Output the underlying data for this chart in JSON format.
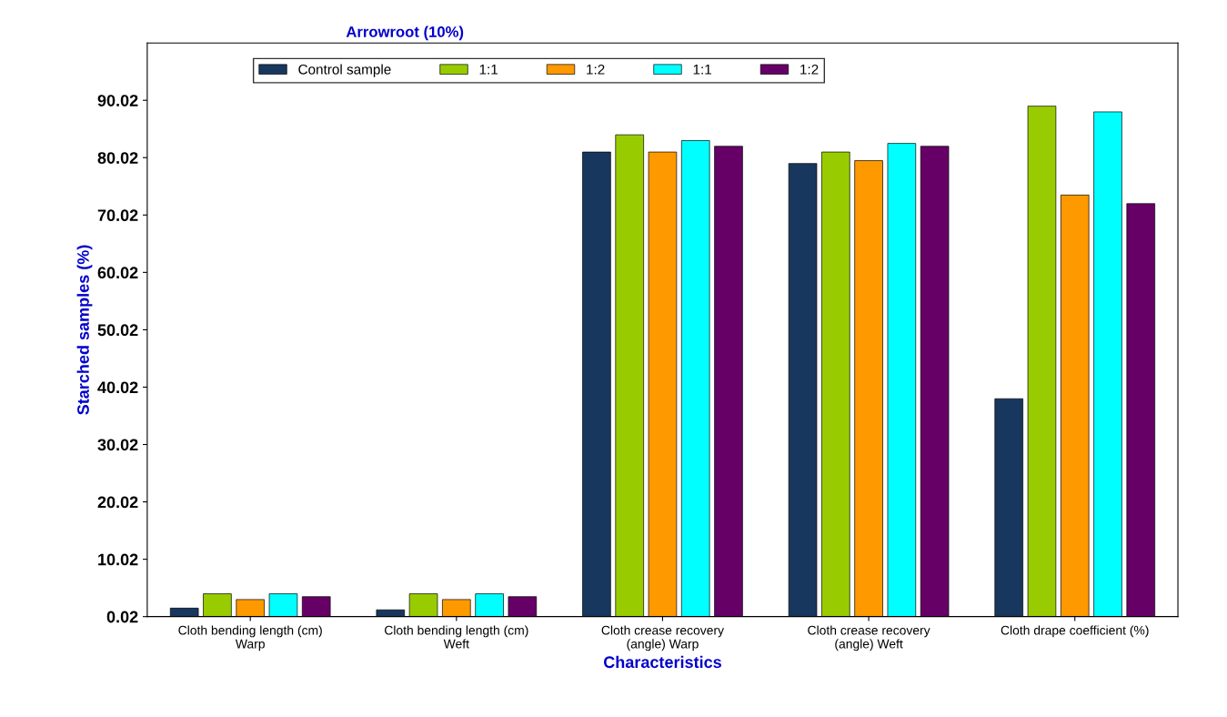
{
  "chart_data": {
    "type": "bar",
    "xlabel": "Characteristics",
    "ylabel": "Starched samples (%)",
    "annotations": [
      "Arrowroot (10%)"
    ],
    "categories": [
      "Cloth bending length (cm)\nWarp",
      "Cloth bending length (cm)\nWeft",
      "Cloth crease recovery\n(angle) Warp",
      "Cloth crease recovery\n(angle) Weft",
      "Cloth drape coefficient (%)"
    ],
    "series": [
      {
        "name": "Control sample",
        "color": "#17375e",
        "values": [
          1.5,
          1.2,
          81,
          79,
          38
        ]
      },
      {
        "name": "1:1",
        "color": "#99cc00",
        "values": [
          4,
          4,
          84,
          81,
          89
        ]
      },
      {
        "name": "1:2",
        "color": "#ff9900",
        "values": [
          3,
          3,
          81,
          79.5,
          73.5
        ]
      },
      {
        "name": "1:1",
        "color": "#00ffff",
        "values": [
          4,
          4,
          83,
          82.5,
          88
        ]
      },
      {
        "name": "1:2",
        "color": "#660066",
        "values": [
          3.5,
          3.5,
          82,
          82,
          72
        ]
      }
    ],
    "ylim": [
      0.02,
      100
    ],
    "yticks": [
      0.02,
      10.02,
      20.02,
      30.02,
      40.02,
      50.02,
      60.02,
      70.02,
      80.02,
      90.02
    ],
    "grid": false,
    "legend": "top"
  }
}
